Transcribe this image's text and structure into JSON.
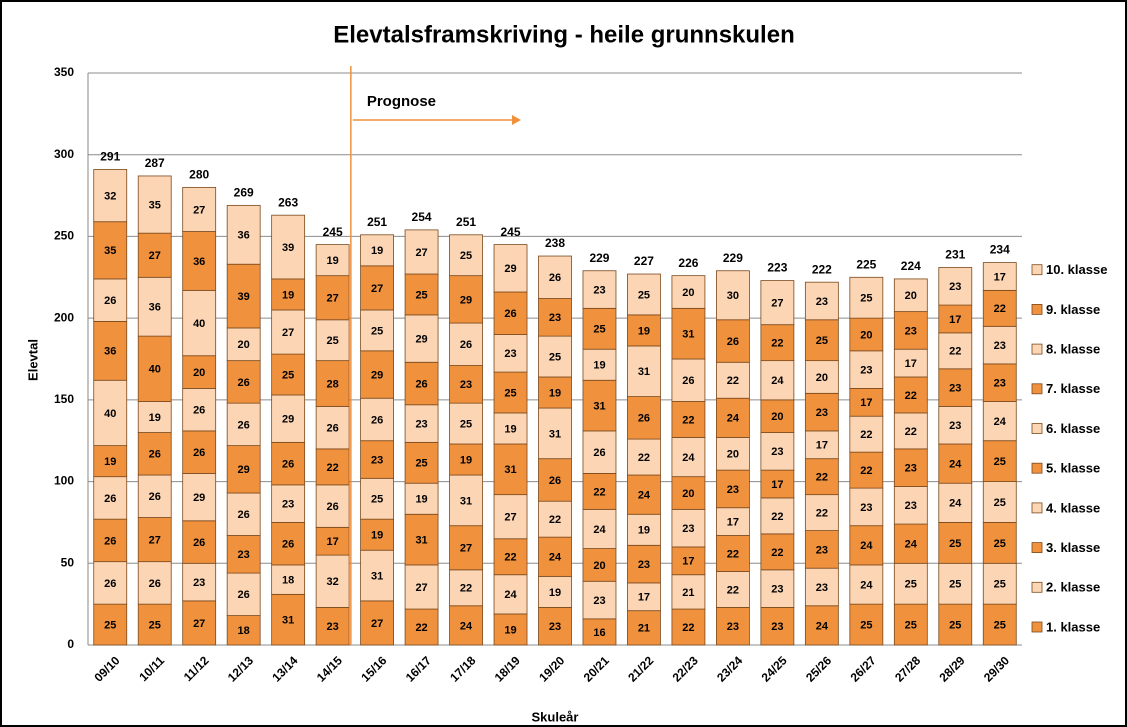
{
  "chart_data": {
    "type": "stacked_bar",
    "title": "Elevtalsframskriving - heile grunnskulen",
    "x_label": "Skuleår",
    "y_label": "Elevtal",
    "categories": [
      "09/10",
      "10/11",
      "11/12",
      "12/13",
      "13/14",
      "14/15",
      "15/16",
      "16/17",
      "17/18",
      "18/19",
      "19/20",
      "20/21",
      "21/22",
      "22/23",
      "23/24",
      "24/25",
      "25/26",
      "26/27",
      "27/28",
      "28/29",
      "29/30"
    ],
    "series": [
      {
        "name": "1. klasse",
        "color": "#f0913e",
        "values": [
          25,
          25,
          27,
          18,
          31,
          23,
          27,
          22,
          24,
          19,
          23,
          16,
          21,
          22,
          23,
          23,
          24,
          25,
          25,
          25,
          25
        ]
      },
      {
        "name": "2. klasse",
        "color": "#fcd5b4",
        "values": [
          26,
          26,
          23,
          26,
          18,
          32,
          31,
          27,
          22,
          24,
          19,
          23,
          17,
          21,
          22,
          23,
          23,
          24,
          25,
          25,
          25
        ]
      },
      {
        "name": "3. klasse",
        "color": "#f0913e",
        "values": [
          26,
          27,
          26,
          23,
          26,
          17,
          19,
          31,
          27,
          22,
          24,
          20,
          23,
          17,
          22,
          22,
          23,
          24,
          24,
          25,
          25
        ]
      },
      {
        "name": "4. klasse",
        "color": "#fcd5b4",
        "values": [
          26,
          26,
          29,
          26,
          23,
          26,
          25,
          19,
          31,
          27,
          22,
          24,
          19,
          23,
          17,
          22,
          22,
          23,
          23,
          24,
          25
        ]
      },
      {
        "name": "5. klasse",
        "color": "#f0913e",
        "values": [
          19,
          26,
          26,
          29,
          26,
          22,
          23,
          25,
          19,
          31,
          26,
          22,
          24,
          20,
          23,
          17,
          22,
          22,
          23,
          24,
          25
        ]
      },
      {
        "name": "6. klasse",
        "color": "#fcd5b4",
        "values": [
          40,
          19,
          26,
          26,
          29,
          26,
          26,
          23,
          25,
          19,
          31,
          26,
          22,
          24,
          20,
          23,
          17,
          22,
          22,
          23,
          24
        ]
      },
      {
        "name": "7. klasse",
        "color": "#f0913e",
        "values": [
          36,
          40,
          20,
          26,
          25,
          28,
          29,
          26,
          23,
          25,
          19,
          31,
          26,
          22,
          24,
          20,
          23,
          17,
          22,
          23,
          23
        ]
      },
      {
        "name": "8. klasse",
        "color": "#fcd5b4",
        "values": [
          26,
          36,
          40,
          20,
          27,
          25,
          25,
          29,
          26,
          23,
          25,
          19,
          31,
          26,
          22,
          24,
          20,
          23,
          17,
          22,
          23
        ]
      },
      {
        "name": "9. klasse",
        "color": "#f0913e",
        "values": [
          35,
          27,
          36,
          39,
          19,
          27,
          27,
          25,
          29,
          26,
          23,
          25,
          19,
          31,
          26,
          22,
          25,
          20,
          23,
          17,
          22
        ]
      },
      {
        "name": "10. klasse",
        "color": "#fcd5b4",
        "values": [
          32,
          35,
          27,
          36,
          39,
          19,
          19,
          27,
          25,
          29,
          26,
          23,
          25,
          20,
          30,
          27,
          23,
          25,
          20,
          23,
          17
        ]
      }
    ],
    "totals": [
      291,
      287,
      280,
      269,
      263,
      245,
      251,
      254,
      251,
      245,
      238,
      229,
      227,
      226,
      229,
      223,
      222,
      225,
      224,
      231,
      234
    ],
    "annotations": [
      {
        "text": "Prognose"
      }
    ],
    "ylim": [
      0,
      350
    ],
    "yticks": [
      0,
      50,
      100,
      150,
      200,
      250,
      300,
      350
    ],
    "grid": true,
    "legend": "right"
  }
}
